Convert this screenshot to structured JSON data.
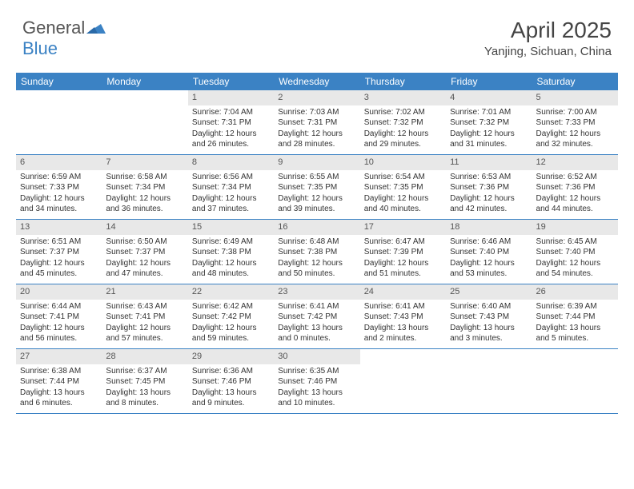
{
  "brand": {
    "text_general": "General",
    "text_blue": "Blue"
  },
  "title": "April 2025",
  "location": "Yanjing, Sichuan, China",
  "colors": {
    "header_bg": "#3b82c4",
    "header_text": "#ffffff",
    "daynum_bg": "#e8e8e8",
    "border": "#3b82c4",
    "body_text": "#333333"
  },
  "weekdays": [
    "Sunday",
    "Monday",
    "Tuesday",
    "Wednesday",
    "Thursday",
    "Friday",
    "Saturday"
  ],
  "weeks": [
    [
      null,
      null,
      {
        "n": "1",
        "sr": "7:04 AM",
        "ss": "7:31 PM",
        "dl": "12 hours and 26 minutes."
      },
      {
        "n": "2",
        "sr": "7:03 AM",
        "ss": "7:31 PM",
        "dl": "12 hours and 28 minutes."
      },
      {
        "n": "3",
        "sr": "7:02 AM",
        "ss": "7:32 PM",
        "dl": "12 hours and 29 minutes."
      },
      {
        "n": "4",
        "sr": "7:01 AM",
        "ss": "7:32 PM",
        "dl": "12 hours and 31 minutes."
      },
      {
        "n": "5",
        "sr": "7:00 AM",
        "ss": "7:33 PM",
        "dl": "12 hours and 32 minutes."
      }
    ],
    [
      {
        "n": "6",
        "sr": "6:59 AM",
        "ss": "7:33 PM",
        "dl": "12 hours and 34 minutes."
      },
      {
        "n": "7",
        "sr": "6:58 AM",
        "ss": "7:34 PM",
        "dl": "12 hours and 36 minutes."
      },
      {
        "n": "8",
        "sr": "6:56 AM",
        "ss": "7:34 PM",
        "dl": "12 hours and 37 minutes."
      },
      {
        "n": "9",
        "sr": "6:55 AM",
        "ss": "7:35 PM",
        "dl": "12 hours and 39 minutes."
      },
      {
        "n": "10",
        "sr": "6:54 AM",
        "ss": "7:35 PM",
        "dl": "12 hours and 40 minutes."
      },
      {
        "n": "11",
        "sr": "6:53 AM",
        "ss": "7:36 PM",
        "dl": "12 hours and 42 minutes."
      },
      {
        "n": "12",
        "sr": "6:52 AM",
        "ss": "7:36 PM",
        "dl": "12 hours and 44 minutes."
      }
    ],
    [
      {
        "n": "13",
        "sr": "6:51 AM",
        "ss": "7:37 PM",
        "dl": "12 hours and 45 minutes."
      },
      {
        "n": "14",
        "sr": "6:50 AM",
        "ss": "7:37 PM",
        "dl": "12 hours and 47 minutes."
      },
      {
        "n": "15",
        "sr": "6:49 AM",
        "ss": "7:38 PM",
        "dl": "12 hours and 48 minutes."
      },
      {
        "n": "16",
        "sr": "6:48 AM",
        "ss": "7:38 PM",
        "dl": "12 hours and 50 minutes."
      },
      {
        "n": "17",
        "sr": "6:47 AM",
        "ss": "7:39 PM",
        "dl": "12 hours and 51 minutes."
      },
      {
        "n": "18",
        "sr": "6:46 AM",
        "ss": "7:40 PM",
        "dl": "12 hours and 53 minutes."
      },
      {
        "n": "19",
        "sr": "6:45 AM",
        "ss": "7:40 PM",
        "dl": "12 hours and 54 minutes."
      }
    ],
    [
      {
        "n": "20",
        "sr": "6:44 AM",
        "ss": "7:41 PM",
        "dl": "12 hours and 56 minutes."
      },
      {
        "n": "21",
        "sr": "6:43 AM",
        "ss": "7:41 PM",
        "dl": "12 hours and 57 minutes."
      },
      {
        "n": "22",
        "sr": "6:42 AM",
        "ss": "7:42 PM",
        "dl": "12 hours and 59 minutes."
      },
      {
        "n": "23",
        "sr": "6:41 AM",
        "ss": "7:42 PM",
        "dl": "13 hours and 0 minutes."
      },
      {
        "n": "24",
        "sr": "6:41 AM",
        "ss": "7:43 PM",
        "dl": "13 hours and 2 minutes."
      },
      {
        "n": "25",
        "sr": "6:40 AM",
        "ss": "7:43 PM",
        "dl": "13 hours and 3 minutes."
      },
      {
        "n": "26",
        "sr": "6:39 AM",
        "ss": "7:44 PM",
        "dl": "13 hours and 5 minutes."
      }
    ],
    [
      {
        "n": "27",
        "sr": "6:38 AM",
        "ss": "7:44 PM",
        "dl": "13 hours and 6 minutes."
      },
      {
        "n": "28",
        "sr": "6:37 AM",
        "ss": "7:45 PM",
        "dl": "13 hours and 8 minutes."
      },
      {
        "n": "29",
        "sr": "6:36 AM",
        "ss": "7:46 PM",
        "dl": "13 hours and 9 minutes."
      },
      {
        "n": "30",
        "sr": "6:35 AM",
        "ss": "7:46 PM",
        "dl": "13 hours and 10 minutes."
      },
      null,
      null,
      null
    ]
  ],
  "labels": {
    "sunrise": "Sunrise:",
    "sunset": "Sunset:",
    "daylight": "Daylight:"
  }
}
